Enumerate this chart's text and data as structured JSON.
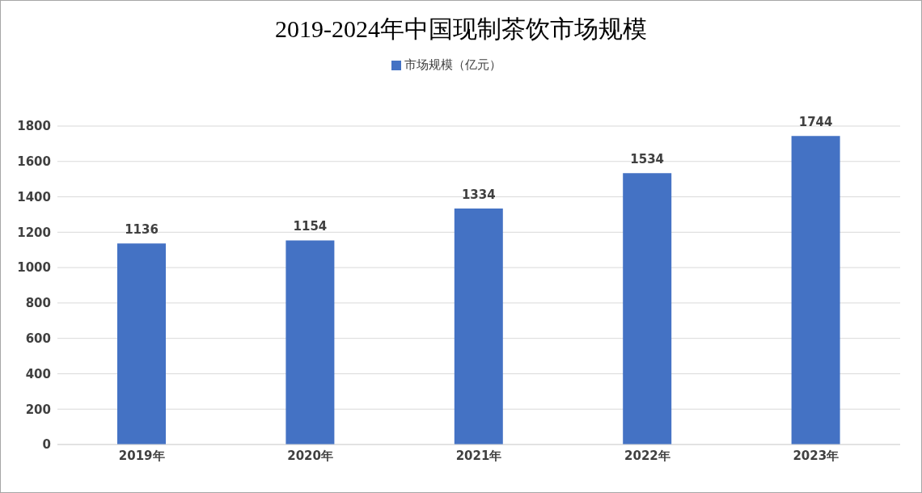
{
  "chart_data": {
    "type": "bar",
    "title": "2019-2024年中国现制茶饮市场规模",
    "categories": [
      "2019年",
      "2020年",
      "2021年",
      "2022年",
      "2023年"
    ],
    "series": [
      {
        "name": "市场规模（亿元）",
        "color": "#4472c4",
        "values": [
          1136,
          1154,
          1334,
          1534,
          1744
        ]
      }
    ],
    "ylim": [
      0,
      1800
    ],
    "yticks": [
      0,
      200,
      400,
      600,
      800,
      1000,
      1200,
      1400,
      1600,
      1800
    ],
    "grid": "y",
    "legend": "top",
    "data_labels": true
  }
}
